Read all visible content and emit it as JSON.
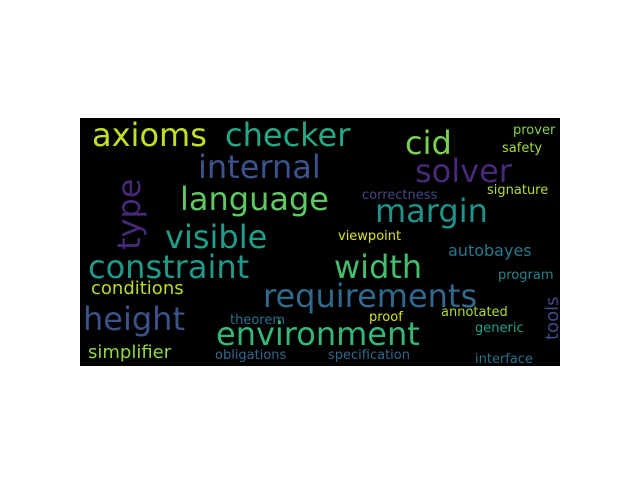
{
  "words": [
    {
      "text": "axioms",
      "color": "#c2df23"
    },
    {
      "text": "checker",
      "color": "#22a884"
    },
    {
      "text": "cid",
      "color": "#7ad151"
    },
    {
      "text": "prover",
      "color": "#84d44b"
    },
    {
      "text": "safety",
      "color": "#a5db36"
    },
    {
      "text": "internal",
      "color": "#3b528b"
    },
    {
      "text": "solver",
      "color": "#482878"
    },
    {
      "text": "type",
      "color": "#482878"
    },
    {
      "text": "language",
      "color": "#5ec962"
    },
    {
      "text": "correctness",
      "color": "#3e4a89"
    },
    {
      "text": "signature",
      "color": "#b5de2b"
    },
    {
      "text": "margin",
      "color": "#21918c"
    },
    {
      "text": "visible",
      "color": "#1f9e89"
    },
    {
      "text": "viewpoint",
      "color": "#dde318"
    },
    {
      "text": "autobayes",
      "color": "#2a788e"
    },
    {
      "text": "constraint",
      "color": "#1f9a8a"
    },
    {
      "text": "width",
      "color": "#44bf70"
    },
    {
      "text": "program",
      "color": "#26828e"
    },
    {
      "text": "requirements",
      "color": "#31688e"
    },
    {
      "text": "conditions",
      "color": "#b8de29"
    },
    {
      "text": "height",
      "color": "#3b528b"
    },
    {
      "text": "tools",
      "color": "#3e4989"
    },
    {
      "text": "theorem",
      "color": "#2c728e"
    },
    {
      "text": "proof",
      "color": "#d8e219"
    },
    {
      "text": "annotated",
      "color": "#addc30"
    },
    {
      "text": "environment",
      "color": "#35b779"
    },
    {
      "text": "generic",
      "color": "#20a386"
    },
    {
      "text": "simplifier",
      "color": "#8fd744"
    },
    {
      "text": "obligations",
      "color": "#31688e"
    },
    {
      "text": "specification",
      "color": "#30698e"
    },
    {
      "text": "interface",
      "color": "#2c728e"
    }
  ]
}
